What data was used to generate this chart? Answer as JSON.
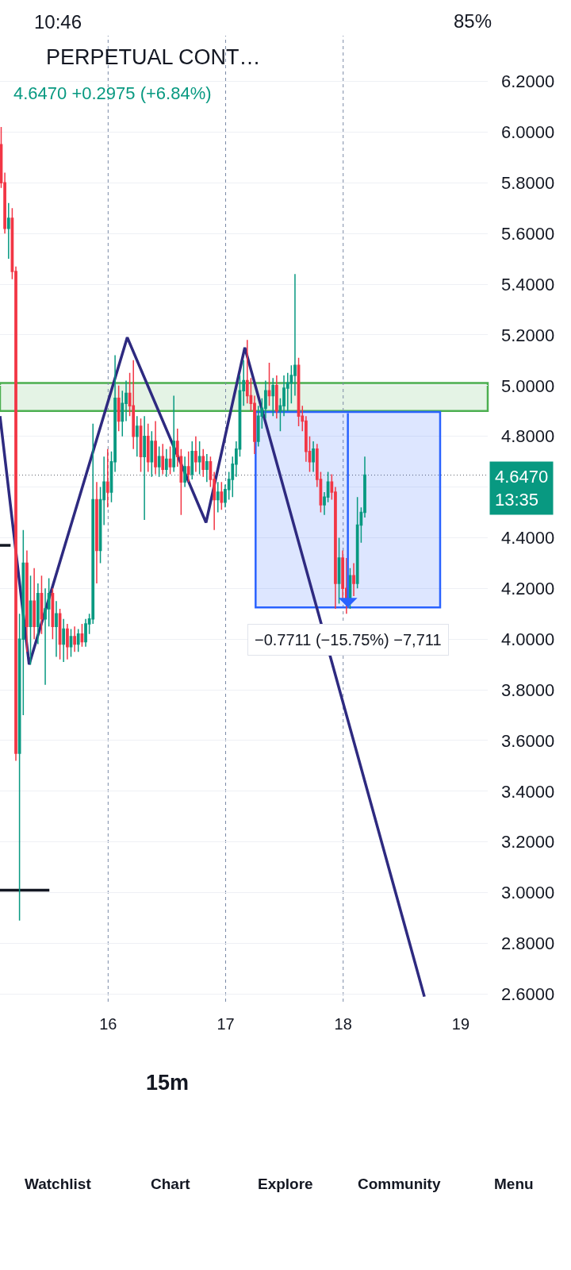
{
  "chart_data": {
    "type": "candlestick",
    "title": "PERPETUAL CONT…",
    "subtitle": "4.6470 +0.2975 (+6.84%)",
    "x": [
      15.09,
      15.121,
      15.153,
      15.184,
      15.215,
      15.246,
      15.278,
      15.309,
      15.34,
      15.371,
      15.403,
      15.434,
      15.465,
      15.496,
      15.528,
      15.559,
      15.59,
      15.621,
      15.653,
      15.684,
      15.715,
      15.746,
      15.778,
      15.809,
      15.84,
      15.871,
      15.903,
      15.934,
      15.965,
      15.996,
      16.028,
      16.059,
      16.09,
      16.121,
      16.153,
      16.184,
      16.215,
      16.246,
      16.278,
      16.309,
      16.34,
      16.371,
      16.403,
      16.434,
      16.465,
      16.496,
      16.528,
      16.559,
      16.59,
      16.621,
      16.653,
      16.684,
      16.715,
      16.746,
      16.778,
      16.809,
      16.84,
      16.871,
      16.903,
      16.934,
      16.965,
      16.996,
      17.028,
      17.059,
      17.09,
      17.121,
      17.153,
      17.184,
      17.215,
      17.246,
      17.278,
      17.309,
      17.34,
      17.371,
      17.403,
      17.434,
      17.465,
      17.496,
      17.528,
      17.559,
      17.59,
      17.621,
      17.653,
      17.684,
      17.715,
      17.746,
      17.778,
      17.809,
      17.84,
      17.871,
      17.903,
      17.934,
      17.965,
      17.996,
      18.028,
      18.059,
      18.09,
      18.121,
      18.153,
      18.184
    ],
    "ohlc": [
      [
        5.95,
        6.02,
        5.78,
        5.8
      ],
      [
        5.8,
        5.84,
        5.6,
        5.62
      ],
      [
        5.62,
        5.72,
        5.5,
        5.66
      ],
      [
        5.66,
        5.7,
        5.42,
        5.45
      ],
      [
        5.45,
        5.47,
        3.52,
        3.55
      ],
      [
        3.55,
        4.1,
        2.89,
        4.0
      ],
      [
        4.0,
        4.43,
        3.7,
        4.3
      ],
      [
        4.3,
        4.35,
        3.95,
        4.05
      ],
      [
        4.05,
        4.25,
        3.9,
        4.15
      ],
      [
        4.15,
        4.28,
        4.0,
        4.05
      ],
      [
        4.05,
        4.22,
        3.98,
        4.18
      ],
      [
        4.18,
        4.25,
        4.02,
        4.08
      ],
      [
        4.08,
        4.2,
        3.82,
        4.12
      ],
      [
        4.12,
        4.24,
        4.05,
        4.18
      ],
      [
        4.18,
        4.2,
        4.0,
        4.05
      ],
      [
        4.05,
        4.15,
        3.93,
        4.1
      ],
      [
        4.1,
        4.12,
        3.92,
        3.98
      ],
      [
        3.98,
        4.08,
        3.91,
        4.04
      ],
      [
        4.04,
        4.06,
        3.92,
        3.97
      ],
      [
        3.97,
        4.04,
        3.93,
        4.01
      ],
      [
        4.01,
        4.05,
        3.95,
        3.98
      ],
      [
        3.98,
        4.04,
        3.95,
        4.02
      ],
      [
        4.02,
        4.06,
        3.97,
        3.99
      ],
      [
        3.99,
        4.08,
        3.97,
        4.06
      ],
      [
        4.06,
        4.1,
        4.02,
        4.08
      ],
      [
        4.08,
        4.85,
        4.06,
        4.55
      ],
      [
        4.55,
        4.62,
        4.22,
        4.35
      ],
      [
        4.35,
        4.6,
        4.3,
        4.55
      ],
      [
        4.55,
        4.72,
        4.45,
        4.62
      ],
      [
        4.62,
        4.75,
        4.52,
        4.58
      ],
      [
        4.58,
        4.74,
        4.54,
        4.7
      ],
      [
        4.7,
        5.12,
        4.66,
        4.95
      ],
      [
        4.95,
        5.0,
        4.82,
        4.86
      ],
      [
        4.86,
        4.98,
        4.8,
        4.93
      ],
      [
        4.93,
        5.02,
        4.86,
        4.97
      ],
      [
        4.97,
        5.05,
        4.88,
        4.92
      ],
      [
        4.92,
        5.1,
        4.75,
        4.8
      ],
      [
        4.8,
        4.88,
        4.72,
        4.84
      ],
      [
        4.84,
        4.87,
        4.66,
        4.72
      ],
      [
        4.72,
        4.88,
        4.47,
        4.8
      ],
      [
        4.8,
        4.85,
        4.66,
        4.7
      ],
      [
        4.7,
        4.82,
        4.64,
        4.78
      ],
      [
        4.78,
        4.86,
        4.65,
        4.68
      ],
      [
        4.68,
        4.76,
        4.64,
        4.72
      ],
      [
        4.72,
        4.77,
        4.65,
        4.67
      ],
      [
        4.67,
        4.75,
        4.64,
        4.71
      ],
      [
        4.71,
        4.76,
        4.65,
        4.68
      ],
      [
        4.68,
        4.96,
        4.66,
        4.78
      ],
      [
        4.78,
        4.83,
        4.68,
        4.72
      ],
      [
        4.72,
        4.75,
        4.49,
        4.62
      ],
      [
        4.62,
        4.72,
        4.6,
        4.68
      ],
      [
        4.68,
        4.74,
        4.62,
        4.65
      ],
      [
        4.65,
        4.78,
        4.63,
        4.74
      ],
      [
        4.74,
        4.8,
        4.66,
        4.7
      ],
      [
        4.7,
        4.78,
        4.65,
        4.72
      ],
      [
        4.72,
        4.75,
        4.64,
        4.67
      ],
      [
        4.67,
        4.73,
        4.62,
        4.7
      ],
      [
        4.7,
        4.72,
        4.6,
        4.63
      ],
      [
        4.63,
        4.66,
        4.43,
        4.55
      ],
      [
        4.55,
        4.62,
        4.5,
        4.58
      ],
      [
        4.58,
        4.62,
        4.51,
        4.54
      ],
      [
        4.54,
        4.61,
        4.52,
        4.59
      ],
      [
        4.59,
        4.66,
        4.55,
        4.63
      ],
      [
        4.63,
        4.72,
        4.56,
        4.69
      ],
      [
        4.69,
        4.78,
        4.64,
        4.75
      ],
      [
        4.75,
        5.04,
        4.72,
        4.98
      ],
      [
        4.98,
        5.1,
        4.92,
        5.02
      ],
      [
        5.02,
        5.18,
        4.93,
        4.96
      ],
      [
        4.96,
        5.03,
        4.9,
        4.93
      ],
      [
        4.93,
        4.96,
        4.73,
        4.78
      ],
      [
        4.78,
        4.92,
        4.76,
        4.88
      ],
      [
        4.88,
        4.95,
        4.83,
        4.91
      ],
      [
        4.91,
        5.02,
        4.87,
        4.98
      ],
      [
        4.98,
        5.09,
        4.92,
        4.96
      ],
      [
        4.96,
        5.03,
        4.88,
        5.0
      ],
      [
        5.0,
        5.04,
        4.87,
        4.9
      ],
      [
        4.9,
        4.95,
        4.82,
        4.92
      ],
      [
        4.92,
        5.04,
        4.88,
        4.99
      ],
      [
        4.99,
        5.05,
        4.9,
        5.01
      ],
      [
        5.01,
        5.08,
        4.93,
        5.04
      ],
      [
        5.04,
        5.44,
        4.96,
        5.08
      ],
      [
        5.08,
        5.11,
        4.84,
        4.88
      ],
      [
        4.88,
        4.92,
        4.82,
        4.86
      ],
      [
        4.86,
        4.88,
        4.7,
        4.74
      ],
      [
        4.74,
        4.8,
        4.66,
        4.7
      ],
      [
        4.7,
        4.78,
        4.66,
        4.75
      ],
      [
        4.75,
        4.77,
        4.6,
        4.63
      ],
      [
        4.63,
        4.66,
        4.5,
        4.53
      ],
      [
        4.53,
        4.58,
        4.49,
        4.56
      ],
      [
        4.56,
        4.66,
        4.54,
        4.62
      ],
      [
        4.62,
        4.65,
        4.55,
        4.58
      ],
      [
        4.58,
        4.6,
        4.12,
        4.22
      ],
      [
        4.22,
        4.4,
        4.14,
        4.32
      ],
      [
        4.32,
        4.35,
        4.16,
        4.2
      ],
      [
        4.2,
        4.32,
        4.1,
        4.16
      ],
      [
        4.16,
        4.28,
        4.12,
        4.25
      ],
      [
        4.25,
        4.3,
        4.17,
        4.22
      ],
      [
        4.22,
        4.56,
        4.2,
        4.45
      ],
      [
        4.45,
        4.52,
        4.38,
        4.5
      ],
      [
        4.5,
        4.72,
        4.48,
        4.647
      ]
    ],
    "colors": [
      "#f23645",
      "#f23645",
      "#089981",
      "#f23645",
      "#f23645",
      "#089981",
      "#089981",
      "#f23645",
      "#089981",
      "#f23645",
      "#089981",
      "#f23645",
      "#089981",
      "#089981",
      "#f23645",
      "#089981",
      "#f23645",
      "#089981",
      "#f23645",
      "#089981",
      "#f23645",
      "#089981",
      "#f23645",
      "#089981",
      "#089981",
      "#089981",
      "#f23645",
      "#089981",
      "#089981",
      "#f23645",
      "#089981",
      "#089981",
      "#f23645",
      "#089981",
      "#089981",
      "#f23645",
      "#f23645",
      "#089981",
      "#f23645",
      "#089981",
      "#f23645",
      "#089981",
      "#f23645",
      "#089981",
      "#f23645",
      "#089981",
      "#f23645",
      "#089981",
      "#f23645",
      "#f23645",
      "#089981",
      "#f23645",
      "#089981",
      "#f23645",
      "#089981",
      "#f23645",
      "#089981",
      "#f23645",
      "#f23645",
      "#089981",
      "#f23645",
      "#089981",
      "#089981",
      "#089981",
      "#089981",
      "#089981",
      "#089981",
      "#f23645",
      "#f23645",
      "#f23645",
      "#089981",
      "#089981",
      "#089981",
      "#f23645",
      "#089981",
      "#f23645",
      "#089981",
      "#089981",
      "#089981",
      "#089981",
      "#089981",
      "#f23645",
      "#f23645",
      "#f23645",
      "#f23645",
      "#089981",
      "#f23645",
      "#f23645",
      "#089981",
      "#089981",
      "#f23645",
      "#f23645",
      "#089981",
      "#f23645",
      "#f23645",
      "#089981",
      "#f23645",
      "#089981",
      "#089981",
      "#089981"
    ],
    "series": [
      {
        "type": "line",
        "color": "#2e2a80",
        "x": [
          15.08,
          15.328,
          16.163,
          16.833,
          17.163,
          18.691
        ],
        "values": [
          4.88,
          3.9,
          5.19,
          4.46,
          5.15,
          2.59
        ]
      },
      {
        "type": "line",
        "color": "#131722",
        "x": [
          15.08,
          15.17
        ],
        "values": [
          4.37,
          4.37
        ]
      },
      {
        "type": "line",
        "color": "#131722",
        "x": [
          15.08,
          15.5
        ],
        "values": [
          3.01,
          3.01
        ]
      },
      {
        "type": "bar",
        "color": "#2962ff",
        "x": [
          18.04
        ],
        "base": [
          4.896
        ],
        "values": [
          -0.7711
        ],
        "value_labels": [
          "−0.7711 (−15.75%) −7,711"
        ]
      }
    ],
    "bands": [
      {
        "axis": "y",
        "from": 4.9,
        "to": 5.01,
        "color": "#4caf50"
      }
    ],
    "ref_lines": [
      {
        "axis": "x",
        "value": 16,
        "color": "#7a8aa6",
        "line_style": "dashed"
      },
      {
        "axis": "x",
        "value": 17,
        "color": "#7a8aa6",
        "line_style": "dashed"
      },
      {
        "axis": "x",
        "value": 18,
        "color": "#7a8aa6",
        "line_style": "dashed"
      },
      {
        "axis": "y",
        "value": 4.647,
        "label": "4.6470\n13:35",
        "color": "#5d606b",
        "line_style": "dotted"
      }
    ],
    "annotations": [
      "10:46",
      "85%",
      "15m",
      "Watchlist",
      "Chart",
      "Explore",
      "Community",
      "Menu"
    ],
    "xlim": [
      15.08,
      19.23
    ],
    "xticks": [
      16,
      17,
      18,
      19
    ],
    "ylim": [
      2.57,
      6.38
    ],
    "yticks": [
      {
        "value": 6.2,
        "label": "6.2000"
      },
      {
        "value": 6.0,
        "label": "6.0000"
      },
      {
        "value": 5.8,
        "label": "5.8000"
      },
      {
        "value": 5.6,
        "label": "5.6000"
      },
      {
        "value": 5.4,
        "label": "5.4000"
      },
      {
        "value": 5.2,
        "label": "5.2000"
      },
      {
        "value": 5.0,
        "label": "5.0000"
      },
      {
        "value": 4.8,
        "label": "4.8000"
      },
      {
        "value": 4.6,
        "label": null
      },
      {
        "value": 4.4,
        "label": "4.4000"
      },
      {
        "value": 4.2,
        "label": "4.2000"
      },
      {
        "value": 4.0,
        "label": "4.0000"
      },
      {
        "value": 3.8,
        "label": "3.8000"
      },
      {
        "value": 3.6,
        "label": "3.6000"
      },
      {
        "value": 3.4,
        "label": "3.4000"
      },
      {
        "value": 3.2,
        "label": "3.2000"
      },
      {
        "value": 3.0,
        "label": "3.0000"
      },
      {
        "value": 2.8,
        "label": "2.8000"
      },
      {
        "value": 2.6,
        "label": "2.6000"
      }
    ],
    "grid": "y"
  }
}
